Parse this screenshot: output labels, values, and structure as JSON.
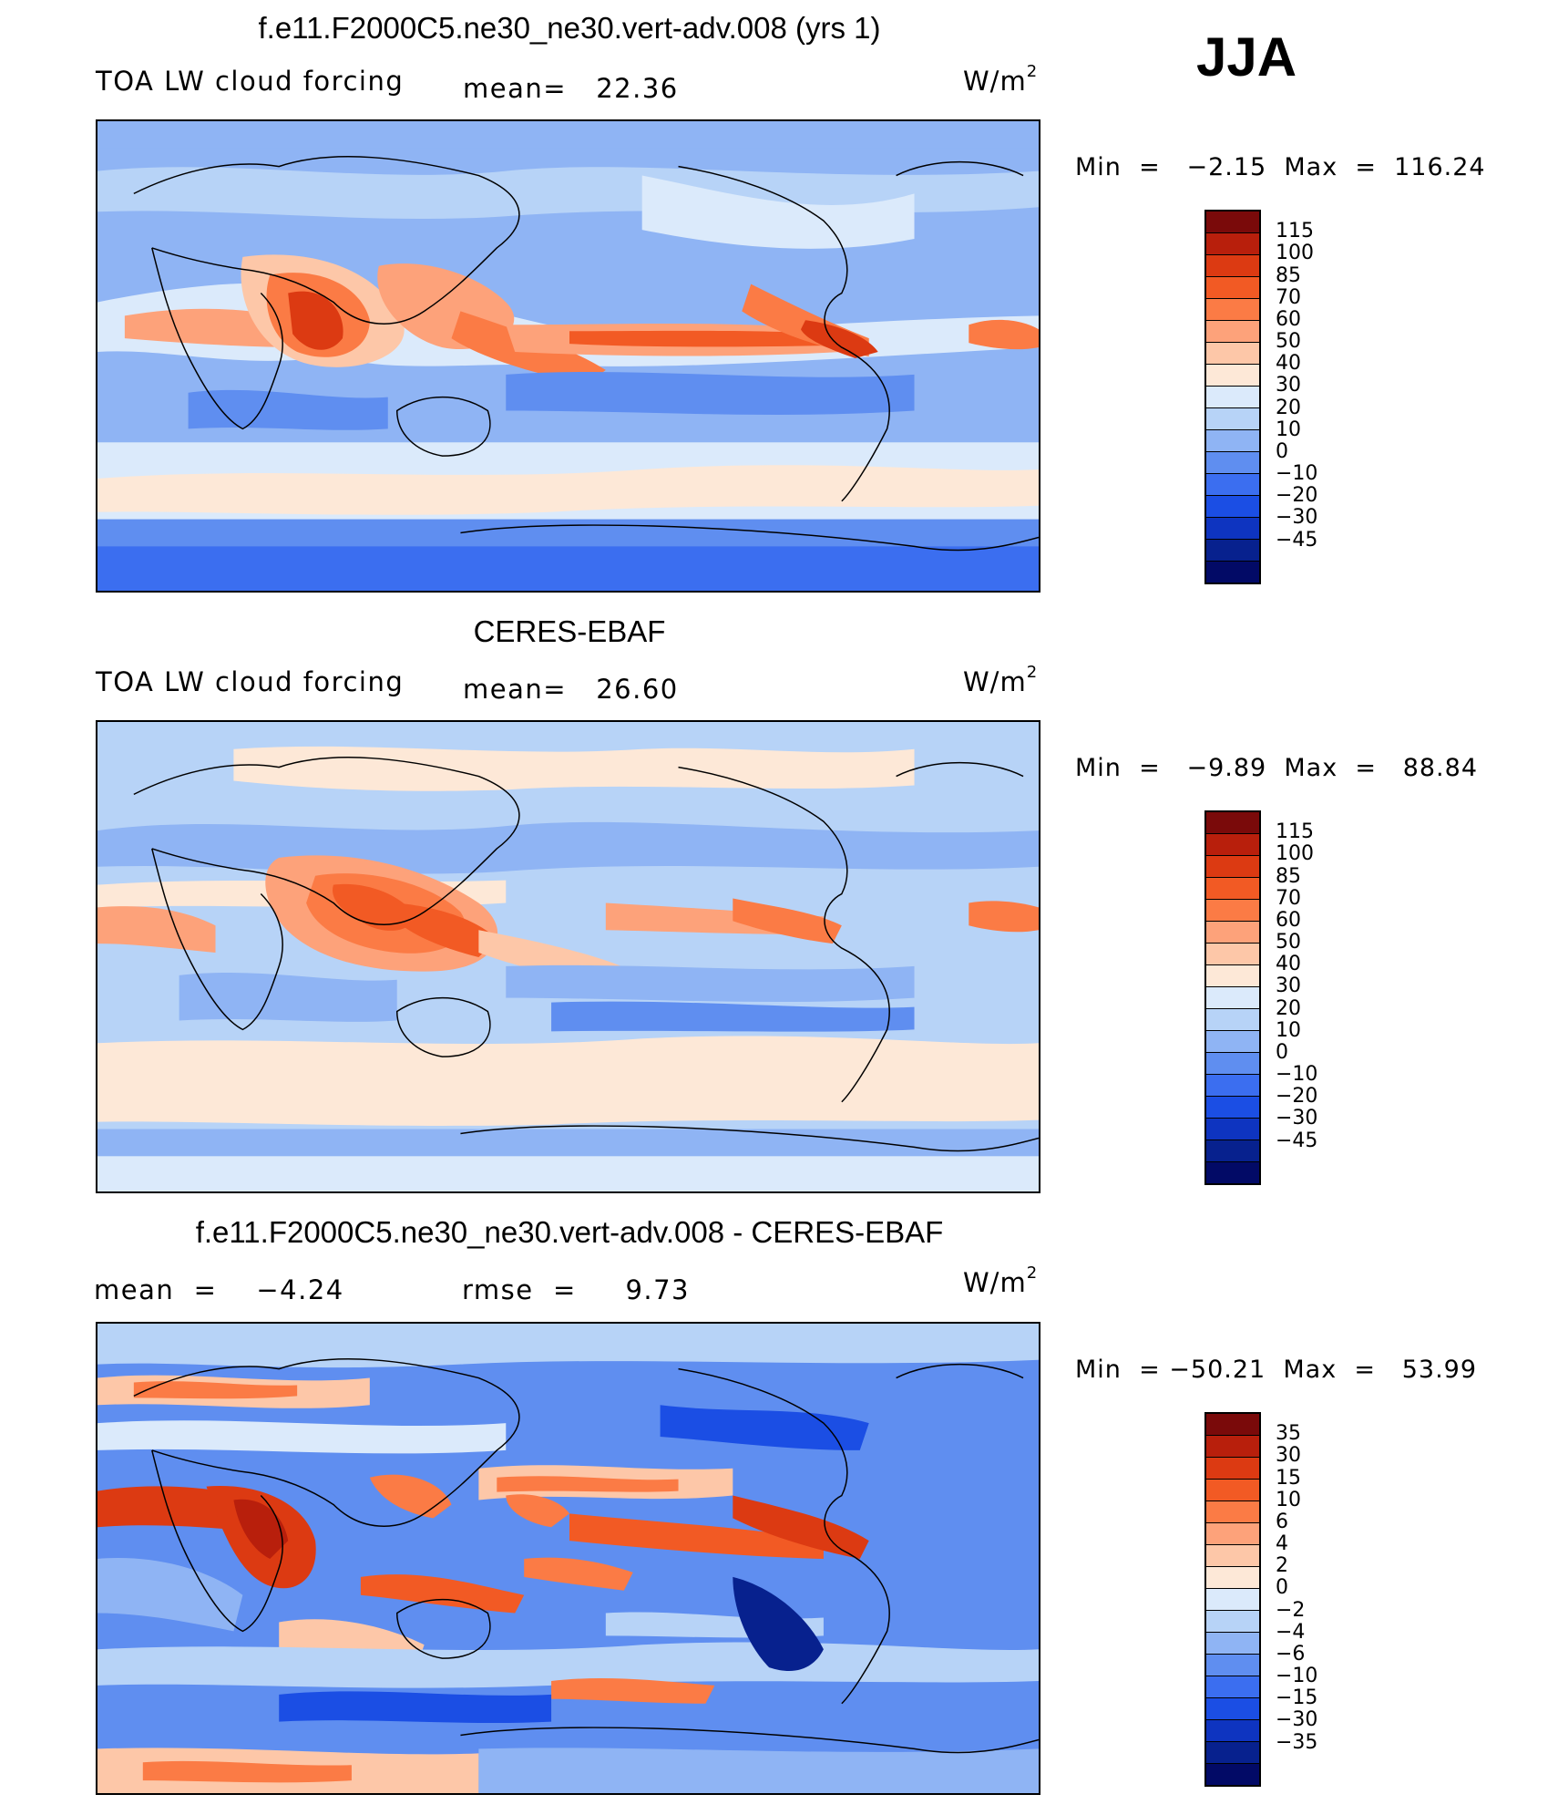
{
  "season": "JJA",
  "panels": [
    {
      "title": "f.e11.F2000C5.ne30_ne30.vert-adv.008 (yrs 1)",
      "left_label": "TOA LW cloud forcing",
      "mid_label": "mean=   22.36",
      "units_base": "W/m",
      "units_sup": "2",
      "min_max": "Min  =   −2.15  Max  =  116.24",
      "colorbar": {
        "colors": [
          "#7a0a0a",
          "#b81f0c",
          "#dc3a12",
          "#f25a24",
          "#fb7b45",
          "#fda27a",
          "#fdc7a8",
          "#fde8d7",
          "#dbeafb",
          "#b7d3f7",
          "#8fb4f4",
          "#5f8ef0",
          "#3b6ef0",
          "#1b4ee4",
          "#0e34c0",
          "#07218e",
          "#020a66"
        ],
        "labels": [
          "115",
          "100",
          "85",
          "70",
          "60",
          "50",
          "40",
          "30",
          "20",
          "10",
          "0",
          "−10",
          "−20",
          "−30",
          "−45"
        ]
      }
    },
    {
      "title": "CERES-EBAF",
      "left_label": "TOA LW cloud forcing",
      "mid_label": "mean=   26.60",
      "units_base": "W/m",
      "units_sup": "2",
      "min_max": "Min  =   −9.89  Max  =   88.84",
      "colorbar": {
        "colors": [
          "#7a0a0a",
          "#b81f0c",
          "#dc3a12",
          "#f25a24",
          "#fb7b45",
          "#fda27a",
          "#fdc7a8",
          "#fde8d7",
          "#dbeafb",
          "#b7d3f7",
          "#8fb4f4",
          "#5f8ef0",
          "#3b6ef0",
          "#1b4ee4",
          "#0e34c0",
          "#07218e",
          "#020a66"
        ],
        "labels": [
          "115",
          "100",
          "85",
          "70",
          "60",
          "50",
          "40",
          "30",
          "20",
          "10",
          "0",
          "−10",
          "−20",
          "−30",
          "−45"
        ]
      }
    },
    {
      "title": "f.e11.F2000C5.ne30_ne30.vert-adv.008 - CERES-EBAF",
      "left_label": "mean  =    −4.24",
      "mid_label": "rmse  =     9.73",
      "units_base": "W/m",
      "units_sup": "2",
      "min_max": "Min  = −50.21  Max  =   53.99",
      "colorbar": {
        "colors": [
          "#7a0a0a",
          "#b81f0c",
          "#dc3a12",
          "#f25a24",
          "#fb7b45",
          "#fda27a",
          "#fdc7a8",
          "#fde8d7",
          "#dbeafb",
          "#b7d3f7",
          "#8fb4f4",
          "#5f8ef0",
          "#3b6ef0",
          "#1b4ee4",
          "#0e34c0",
          "#07218e",
          "#020a66"
        ],
        "labels": [
          "35",
          "30",
          "15",
          "10",
          "6",
          "4",
          "2",
          "0",
          "−2",
          "−4",
          "−6",
          "−10",
          "−15",
          "−30",
          "−35"
        ]
      }
    }
  ]
}
